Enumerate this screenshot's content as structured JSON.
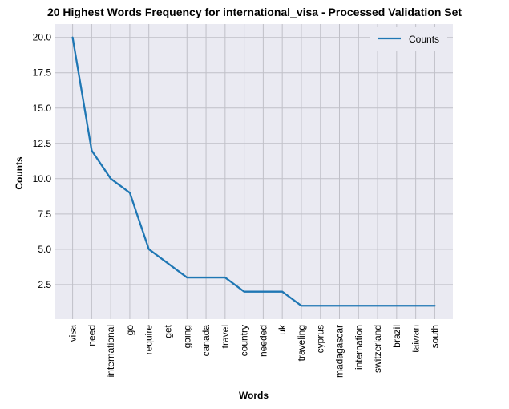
{
  "chart_data": {
    "type": "line",
    "title": "20 Highest Words Frequency for international_visa - Processed Validation Set",
    "xlabel": "Words",
    "ylabel": "Counts",
    "categories": [
      "visa",
      "need",
      "international",
      "go",
      "require",
      "get",
      "going",
      "canada",
      "travel",
      "country",
      "needed",
      "uk",
      "traveling",
      "cyprus",
      "madagascar",
      "internation",
      "switzerland",
      "brazil",
      "taiwan",
      "south"
    ],
    "series": [
      {
        "name": "Counts",
        "values": [
          20,
          12,
          10,
          9,
          5,
          4,
          3,
          3,
          3,
          2,
          2,
          2,
          1,
          1,
          1,
          1,
          1,
          1,
          1,
          1
        ]
      }
    ],
    "ylim": [
      0.05,
      20.95
    ],
    "yticks": [
      2.5,
      5.0,
      7.5,
      10.0,
      12.5,
      15.0,
      17.5,
      20.0
    ],
    "ytick_labels": [
      "2.5",
      "5.0",
      "7.5",
      "10.0",
      "12.5",
      "15.0",
      "17.5",
      "20.0"
    ],
    "grid": true,
    "legend_position": "top-right",
    "colors": {
      "line": "#1f77b4",
      "background": "#eaeaf2",
      "grid": "#c0c0c8"
    }
  }
}
